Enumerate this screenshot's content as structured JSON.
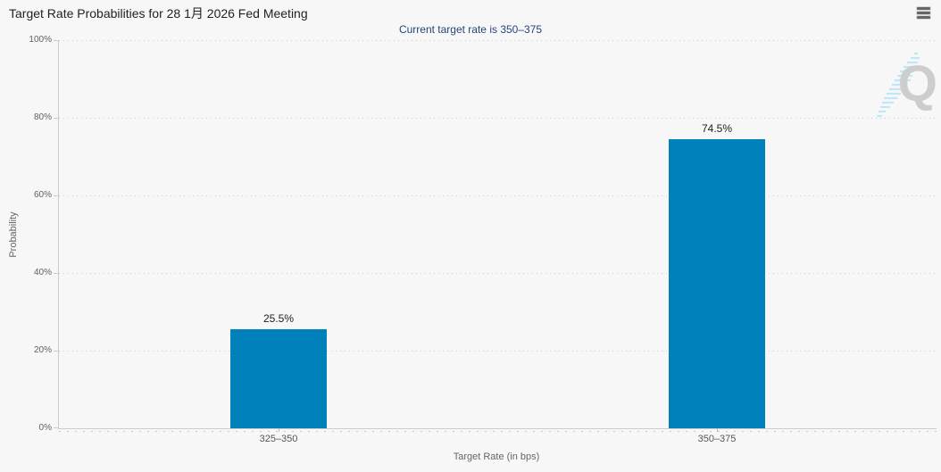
{
  "header": {
    "title": "Target Rate Probabilities for 28 1月 2026 Fed Meeting",
    "subtitle": "Current target rate is 350–375"
  },
  "watermark": {
    "letter": "Q"
  },
  "colors": {
    "background": "#f7f7f7",
    "bar": "#0081bc",
    "subtitle_text": "#26457d",
    "axis_line": "#cccccc",
    "gridline": "#cccccc",
    "tick_label": "#606060",
    "watermark_q": "#cdcdcd",
    "watermark_stripes": "#bfe7f8",
    "menu_icon": "#666666"
  },
  "chart_data": {
    "type": "bar",
    "title": "Target Rate Probabilities for 28 1月 2026 Fed Meeting",
    "subtitle": "Current target rate is 350–375",
    "categories": [
      "325–350",
      "350–375"
    ],
    "values": [
      25.5,
      74.5
    ],
    "value_labels": [
      "25.5%",
      "74.5%"
    ],
    "xlabel": "Target Rate (in bps)",
    "ylabel": "Probability",
    "ylim": [
      0,
      100
    ],
    "ytick_step": 20,
    "yticks": [
      "0%",
      "20%",
      "40%",
      "60%",
      "80%",
      "100%"
    ],
    "grid": "dotted-horizontal",
    "legend": "none"
  }
}
